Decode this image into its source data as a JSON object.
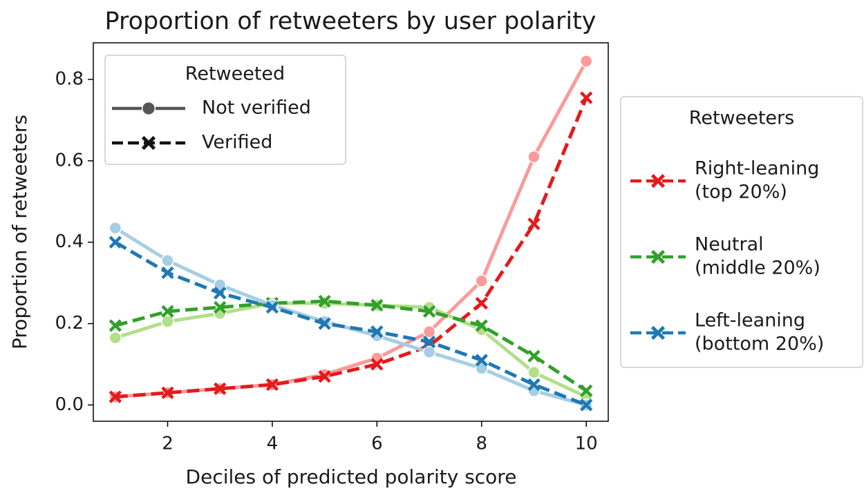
{
  "chart_data": {
    "type": "line",
    "title": "Proportion of retweeters by user polarity",
    "x_label": "Deciles of predicted polarity score",
    "y_label": "Proportion of retweeters",
    "x": [
      1,
      2,
      3,
      4,
      5,
      6,
      7,
      8,
      9,
      10
    ],
    "xlim": [
      0.58,
      10.42
    ],
    "ylim": [
      -0.04,
      0.89
    ],
    "xticks": [
      2,
      4,
      6,
      8,
      10
    ],
    "yticks": [
      {
        "value": 0,
        "label": "0.0"
      },
      0.2,
      0.4,
      0.6,
      0.8
    ],
    "series": [
      {
        "color": "#fb9a99",
        "style": "solid",
        "marker": "circle",
        "values": [
          0.02,
          0.03,
          0.04,
          0.05,
          0.075,
          0.115,
          0.18,
          0.305,
          0.61,
          0.845
        ]
      },
      {
        "color": "#e31a1c",
        "style": "dashed",
        "marker": "x",
        "values": [
          0.02,
          0.03,
          0.04,
          0.05,
          0.07,
          0.1,
          0.145,
          0.25,
          0.445,
          0.755
        ]
      },
      {
        "color": "#b2df8a",
        "style": "solid",
        "marker": "circle",
        "values": [
          0.165,
          0.205,
          0.225,
          0.25,
          0.25,
          0.245,
          0.24,
          0.185,
          0.08,
          0.02
        ]
      },
      {
        "color": "#33a02c",
        "style": "dashed",
        "marker": "x",
        "values": [
          0.195,
          0.23,
          0.24,
          0.25,
          0.255,
          0.245,
          0.23,
          0.195,
          0.12,
          0.035
        ]
      },
      {
        "color": "#a6cee3",
        "style": "solid",
        "marker": "circle",
        "values": [
          0.435,
          0.355,
          0.295,
          0.245,
          0.205,
          0.17,
          0.13,
          0.09,
          0.035,
          0.0
        ]
      },
      {
        "color": "#1f78b4",
        "style": "dashed",
        "marker": "x",
        "values": [
          0.4,
          0.325,
          0.275,
          0.24,
          0.2,
          0.18,
          0.155,
          0.11,
          0.05,
          0.0
        ]
      }
    ],
    "legends": [
      {
        "title": "Retweeted",
        "entries": [
          {
            "label": [
              "Not verified"
            ],
            "color": "#555555",
            "style": "solid",
            "marker": "circle"
          },
          {
            "label": [
              "Verified"
            ],
            "color": "#111111",
            "style": "dashed",
            "marker": "x"
          }
        ]
      },
      {
        "title": "Retweeters",
        "entries": [
          {
            "label": [
              "Right-leaning",
              "(top 20%)"
            ],
            "color": "#e31a1c",
            "style": "dashed",
            "marker": "x"
          },
          {
            "label": [
              "Neutral",
              "(middle 20%)"
            ],
            "color": "#33a02c",
            "style": "dashed",
            "marker": "x"
          },
          {
            "label": [
              "Left-leaning",
              "(bottom 20%)"
            ],
            "color": "#1f78b4",
            "style": "dashed",
            "marker": "x"
          }
        ]
      }
    ]
  }
}
